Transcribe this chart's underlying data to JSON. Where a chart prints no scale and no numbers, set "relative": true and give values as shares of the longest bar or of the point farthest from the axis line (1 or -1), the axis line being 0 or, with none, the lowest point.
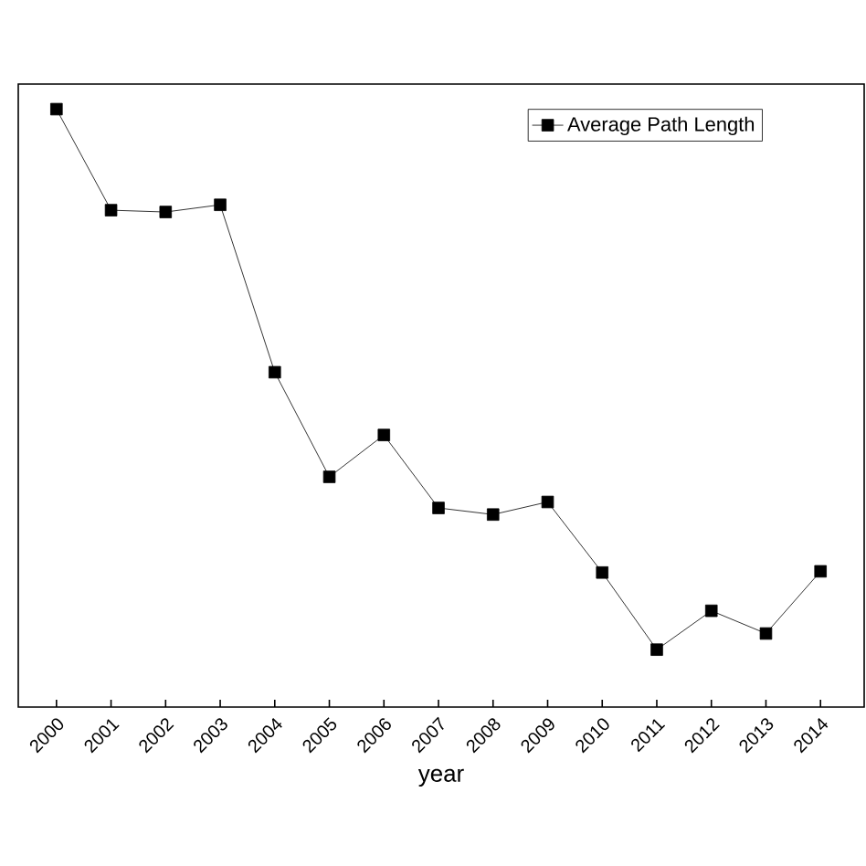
{
  "chart_data": {
    "type": "line",
    "xlabel": "year",
    "categories": [
      "2000",
      "2001",
      "2002",
      "2003",
      "2004",
      "2005",
      "2006",
      "2007",
      "2008",
      "2009",
      "2010",
      "2011",
      "2012",
      "2013",
      "2014"
    ],
    "series": [
      {
        "name": "Average Path Length",
        "color": "#000000",
        "values": [
          1,
          0.831,
          0.828,
          0.84,
          0.56,
          0.385,
          0.455,
          0.333,
          0.322,
          0.343,
          0.225,
          0.096,
          0.161,
          0.123,
          0.227
        ]
      }
    ],
    "relative": true,
    "marker": "square",
    "line_style": "solid",
    "legend": "top right",
    "grid": false
  }
}
